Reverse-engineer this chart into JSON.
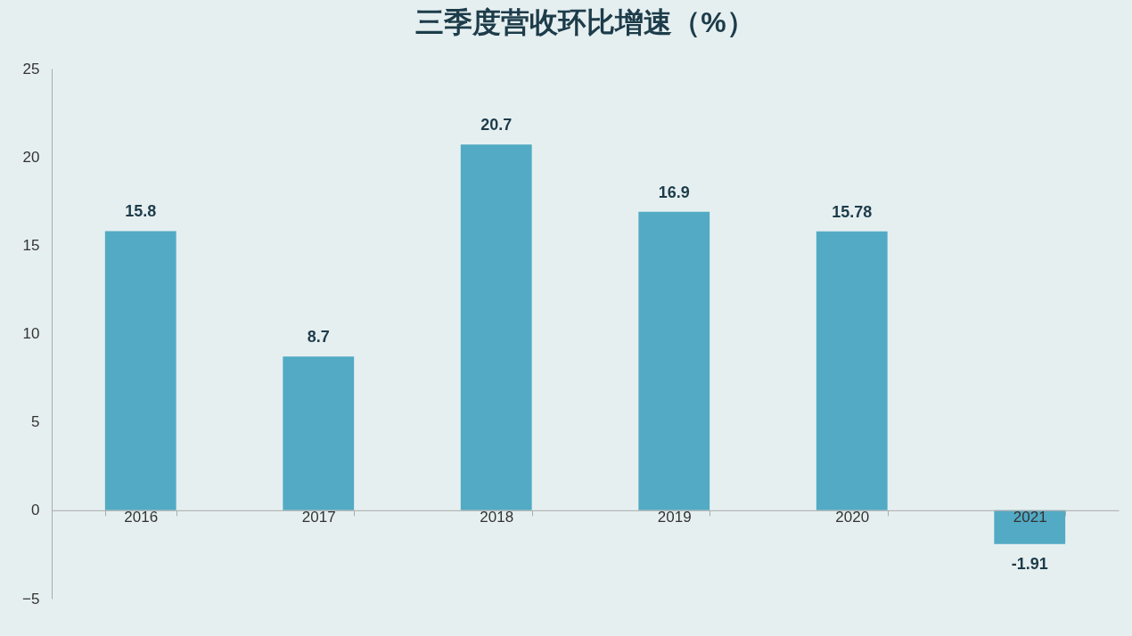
{
  "chart_data": {
    "type": "bar",
    "title": "三季度营收环比增速（%）",
    "categories": [
      "2016",
      "2017",
      "2018",
      "2019",
      "2020",
      "2021"
    ],
    "values": [
      15.8,
      8.7,
      20.7,
      16.9,
      15.78,
      -1.91
    ],
    "color": "#52aac4",
    "ylim": [
      -5,
      25
    ],
    "yticks": [
      -5,
      0,
      5,
      10,
      15,
      20,
      25
    ],
    "grid": false,
    "data_labels": true
  }
}
